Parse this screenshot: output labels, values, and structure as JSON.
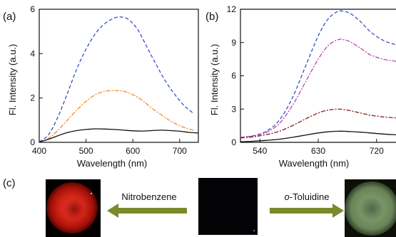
{
  "chart_data": [
    {
      "panel_label": "(a)",
      "type": "line",
      "xlabel": "Wavelength (nm)",
      "ylabel": "Fl. Intensity (a.u.)",
      "xlim": [
        400,
        740
      ],
      "ylim": [
        0,
        6
      ],
      "xticks": [
        "400",
        "500",
        "600",
        "700"
      ],
      "yticks": [
        "0",
        "2",
        "4",
        "6"
      ],
      "series": [
        {
          "color": "#3b4fc4",
          "dash": "5,3",
          "x": [
            400,
            420,
            440,
            460,
            480,
            500,
            520,
            540,
            560,
            575,
            590,
            610,
            630,
            650,
            670,
            690,
            710,
            730
          ],
          "y": [
            0.02,
            0.35,
            1.15,
            2.2,
            3.3,
            4.2,
            4.9,
            5.35,
            5.6,
            5.65,
            5.55,
            5.1,
            4.3,
            3.5,
            2.75,
            2.15,
            1.65,
            1.3
          ]
        },
        {
          "color": "#f08c21",
          "dash": "6,2,2,2",
          "x": [
            400,
            420,
            440,
            460,
            480,
            500,
            520,
            540,
            560,
            580,
            600,
            620,
            640,
            660,
            680,
            700,
            720,
            730
          ],
          "y": [
            0.02,
            0.18,
            0.55,
            1.0,
            1.45,
            1.85,
            2.15,
            2.3,
            2.33,
            2.3,
            2.15,
            1.9,
            1.55,
            1.25,
            0.97,
            0.75,
            0.6,
            0.55
          ]
        },
        {
          "color": "#111111",
          "dash": "",
          "x": [
            400,
            420,
            440,
            460,
            480,
            500,
            520,
            540,
            560,
            580,
            600,
            620,
            640,
            660,
            680,
            700,
            720,
            740
          ],
          "y": [
            0.02,
            0.14,
            0.3,
            0.44,
            0.53,
            0.58,
            0.61,
            0.6,
            0.58,
            0.55,
            0.52,
            0.51,
            0.53,
            0.55,
            0.53,
            0.5,
            0.45,
            0.42
          ]
        }
      ]
    },
    {
      "panel_label": "(b)",
      "type": "line",
      "xlabel": "Wavelength (nm)",
      "ylabel": "Fl. Intensity (a.u.)",
      "xlim": [
        510,
        750
      ],
      "ylim": [
        0,
        12
      ],
      "xticks": [
        "540",
        "630",
        "720"
      ],
      "yticks": [
        "0",
        "3",
        "6",
        "9",
        "12"
      ],
      "series": [
        {
          "color": "#3b4fc4",
          "dash": "5,3",
          "x": [
            510,
            530,
            550,
            570,
            590,
            610,
            630,
            645,
            660,
            670,
            680,
            695,
            710,
            730,
            750
          ],
          "y": [
            0.45,
            0.6,
            1.0,
            2.0,
            4.0,
            6.8,
            9.6,
            11.1,
            11.8,
            11.8,
            11.6,
            10.9,
            10.0,
            9.2,
            8.8
          ]
        },
        {
          "color": "#c040b0",
          "dash": "6,2,2,2",
          "x": [
            510,
            530,
            550,
            570,
            590,
            610,
            630,
            645,
            660,
            670,
            680,
            695,
            710,
            730,
            750
          ],
          "y": [
            0.45,
            0.58,
            0.9,
            1.7,
            3.3,
            5.4,
            7.5,
            8.7,
            9.25,
            9.25,
            9.05,
            8.5,
            7.9,
            7.5,
            7.3
          ]
        },
        {
          "color": "#8a1a1a",
          "dash": "6,2,2,2",
          "x": [
            510,
            530,
            550,
            570,
            590,
            610,
            630,
            645,
            660,
            670,
            680,
            695,
            710,
            730,
            750
          ],
          "y": [
            0.4,
            0.5,
            0.7,
            1.0,
            1.5,
            2.1,
            2.65,
            2.9,
            3.0,
            2.95,
            2.85,
            2.65,
            2.45,
            2.3,
            2.2
          ]
        },
        {
          "color": "#111111",
          "dash": "",
          "x": [
            510,
            530,
            550,
            570,
            590,
            610,
            630,
            645,
            660,
            670,
            680,
            695,
            710,
            730,
            750
          ],
          "y": [
            0.05,
            0.1,
            0.18,
            0.28,
            0.45,
            0.65,
            0.85,
            0.95,
            1.0,
            1.0,
            0.97,
            0.92,
            0.85,
            0.75,
            0.68
          ]
        }
      ]
    }
  ],
  "panel_c": {
    "label": "(c)",
    "left_arrow_label": "Nitrobenzene",
    "right_arrow_label_italic": "o",
    "right_arrow_label_rest": "-Toluidine",
    "arrow_color": "#7a8a2a",
    "left_image_color": "#d8241c",
    "right_image_color": "#6e8a5e"
  }
}
